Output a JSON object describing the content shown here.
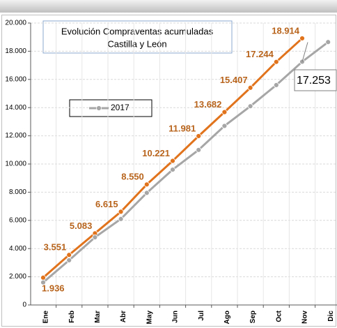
{
  "chart_data": {
    "type": "line",
    "title": [
      "Evolución Compraventas acumuladas",
      "Castilla y León"
    ],
    "categories": [
      "Ene",
      "Feb",
      "Mar",
      "Abr",
      "May",
      "Jun",
      "Jul",
      "Ago",
      "Sep",
      "Oct",
      "Nov",
      "Dic"
    ],
    "series": [
      {
        "color": "#e0731c",
        "label_color": "#b8641c",
        "values": [
          1936,
          3551,
          5083,
          6615,
          8550,
          10221,
          11981,
          13682,
          15407,
          17244,
          18914,
          null
        ],
        "value_labels": [
          "1.936",
          "3.551",
          "5.083",
          "6.615",
          "8.550",
          "10.221",
          "11.981",
          "13.682",
          "15.407",
          "17.244",
          "18.914",
          null
        ]
      },
      {
        "name": "2017",
        "color": "#a6a6a6",
        "values": [
          1600,
          3170,
          4800,
          6100,
          7950,
          9600,
          11000,
          12700,
          14100,
          15600,
          17253,
          18650
        ],
        "value_labels": [
          null,
          null,
          null,
          null,
          null,
          null,
          null,
          null,
          null,
          null,
          "17.253",
          null
        ]
      }
    ],
    "ylim": [
      0,
      20000
    ],
    "yticks": [
      0,
      {
        "value": 2000,
        "label": "2.000"
      },
      {
        "value": 4000,
        "label": "4.000"
      },
      {
        "value": 6000,
        "label": "6.000"
      },
      {
        "value": 8000,
        "label": "8.000"
      },
      {
        "value": 10000,
        "label": "10.000"
      },
      {
        "value": 12000,
        "label": "12.000"
      },
      {
        "value": 14000,
        "label": "14.000"
      },
      {
        "value": 16000,
        "label": "16.000"
      },
      {
        "value": 18000,
        "label": "18.000"
      },
      {
        "value": 20000,
        "label": "20.000"
      }
    ],
    "grid": true
  }
}
